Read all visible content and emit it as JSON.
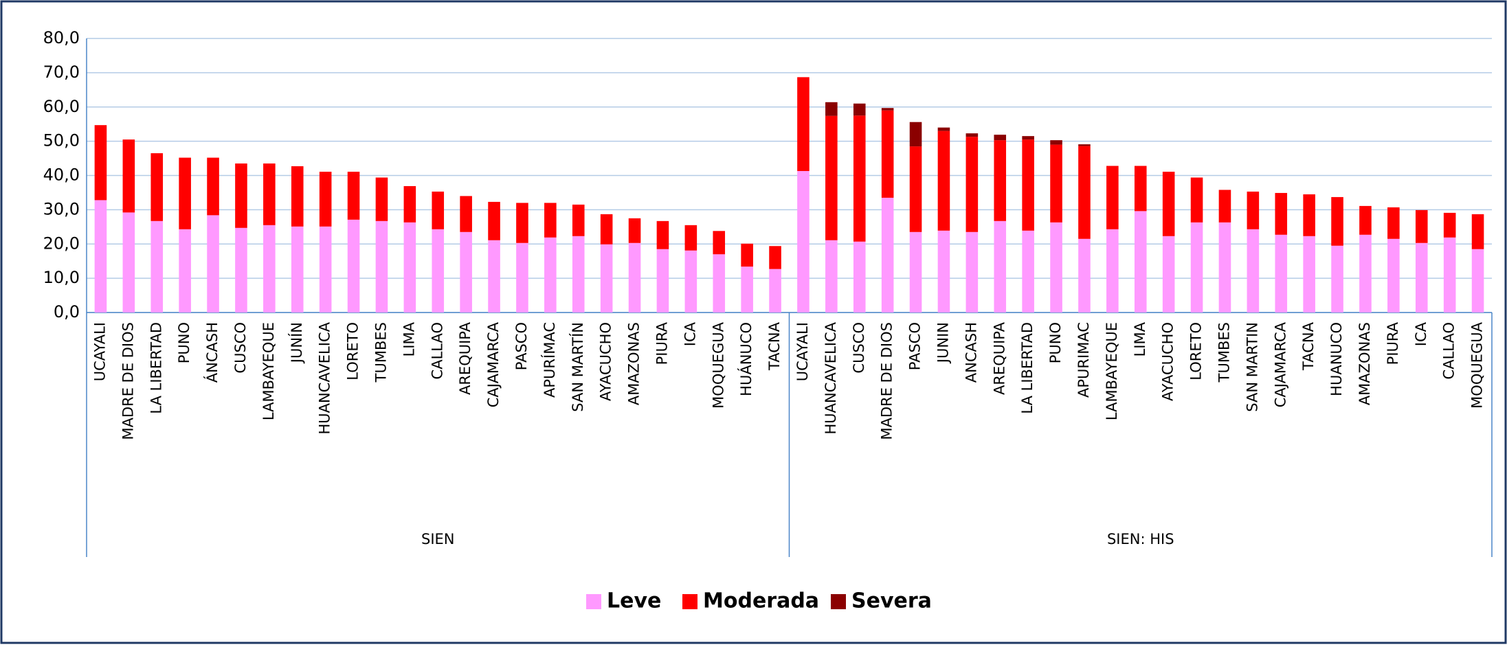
{
  "chart_data": {
    "type": "stacked_bar",
    "category_groups": [
      {
        "label": "SIEN",
        "categories": [
          "UCAYALI",
          "MADRE DE DIOS",
          "LA LIBERTAD",
          "PUNO",
          "ÁNCASH",
          "CUSCO",
          "LAMBAYEQUE",
          "JUNÍN",
          "HUANCAVELICA",
          "LORETO",
          "TUMBES",
          "LIMA",
          "CALLAO",
          "AREQUIPA",
          "CAJAMARCA",
          "PASCO",
          "APURÍMAC",
          "SAN MARTÍN",
          "AYACUCHO",
          "AMAZONAS",
          "PIURA",
          "ICA",
          "MOQUEGUA",
          "HUÁNUCO",
          "TACNA"
        ]
      },
      {
        "label": "SIEN: HIS",
        "categories": [
          "UCAYALI",
          "HUANCAVELICA",
          "CUSCO",
          "MADRE DE DIOS",
          "PASCO",
          "JUNIN",
          "ANCASH",
          "AREQUIPA",
          "LA LIBERTAD",
          "PUNO",
          "APURIMAC",
          "LAMBAYEQUE",
          "LIMA",
          "AYACUCHO",
          "LORETO",
          "TUMBES",
          "SAN MARTIN",
          "CAJAMARCA",
          "TACNA",
          "HUANUCO",
          "AMAZONAS",
          "PIURA",
          "ICA",
          "CALLAO",
          "MOQUEGUA"
        ]
      }
    ],
    "series": [
      {
        "name": "Leve",
        "color": "#ff99ff",
        "values": [
          32.8,
          29.2,
          26.7,
          24.3,
          28.4,
          24.7,
          25.5,
          25.1,
          25.1,
          27.1,
          26.7,
          26.3,
          24.3,
          23.5,
          21.1,
          20.3,
          21.9,
          22.3,
          19.9,
          20.3,
          18.5,
          18.1,
          17.0,
          13.4,
          12.7,
          41.3,
          21.1,
          20.7,
          33.5,
          23.5,
          23.9,
          23.5,
          26.7,
          23.9,
          26.3,
          21.5,
          24.3,
          29.6,
          22.3,
          26.3,
          26.3,
          24.3,
          22.7,
          22.3,
          19.5,
          22.7,
          21.5,
          20.3,
          21.9,
          18.5
        ]
      },
      {
        "name": "Moderada",
        "color": "#ff0000",
        "values": [
          21.9,
          21.3,
          19.8,
          20.9,
          16.8,
          18.8,
          18.0,
          17.6,
          16.0,
          14.0,
          12.7,
          10.6,
          11.0,
          10.5,
          11.2,
          11.7,
          10.1,
          9.2,
          8.8,
          7.2,
          8.2,
          7.4,
          6.8,
          6.7,
          6.7,
          27.4,
          36.3,
          36.8,
          25.5,
          25.0,
          29.1,
          27.8,
          23.6,
          26.6,
          22.7,
          27.1,
          18.5,
          13.2,
          18.8,
          13.1,
          9.5,
          11.0,
          12.2,
          12.2,
          14.2,
          8.4,
          9.2,
          9.6,
          7.2,
          10.2
        ]
      },
      {
        "name": "Severa",
        "color": "#8b0000",
        "values": [
          0,
          0,
          0,
          0,
          0,
          0,
          0,
          0,
          0,
          0,
          0,
          0,
          0,
          0,
          0,
          0,
          0,
          0,
          0,
          0,
          0,
          0,
          0,
          0,
          0,
          0,
          4.0,
          3.5,
          0.7,
          7.1,
          1.0,
          1.0,
          1.6,
          1.0,
          1.3,
          0.5,
          0,
          0,
          0,
          0,
          0,
          0,
          0,
          0,
          0,
          0,
          0,
          0,
          0,
          0
        ]
      }
    ],
    "ylim": [
      0,
      80
    ],
    "yticks": [
      {
        "value": 0,
        "label": "0,0"
      },
      {
        "value": 10,
        "label": "10,0"
      },
      {
        "value": 20,
        "label": "20,0"
      },
      {
        "value": 30,
        "label": "30,0"
      },
      {
        "value": 40,
        "label": "40,0"
      },
      {
        "value": 50,
        "label": "50,0"
      },
      {
        "value": 60,
        "label": "60,0"
      },
      {
        "value": 70,
        "label": "70,0"
      },
      {
        "value": 80,
        "label": "80,0"
      }
    ],
    "grid": true
  }
}
